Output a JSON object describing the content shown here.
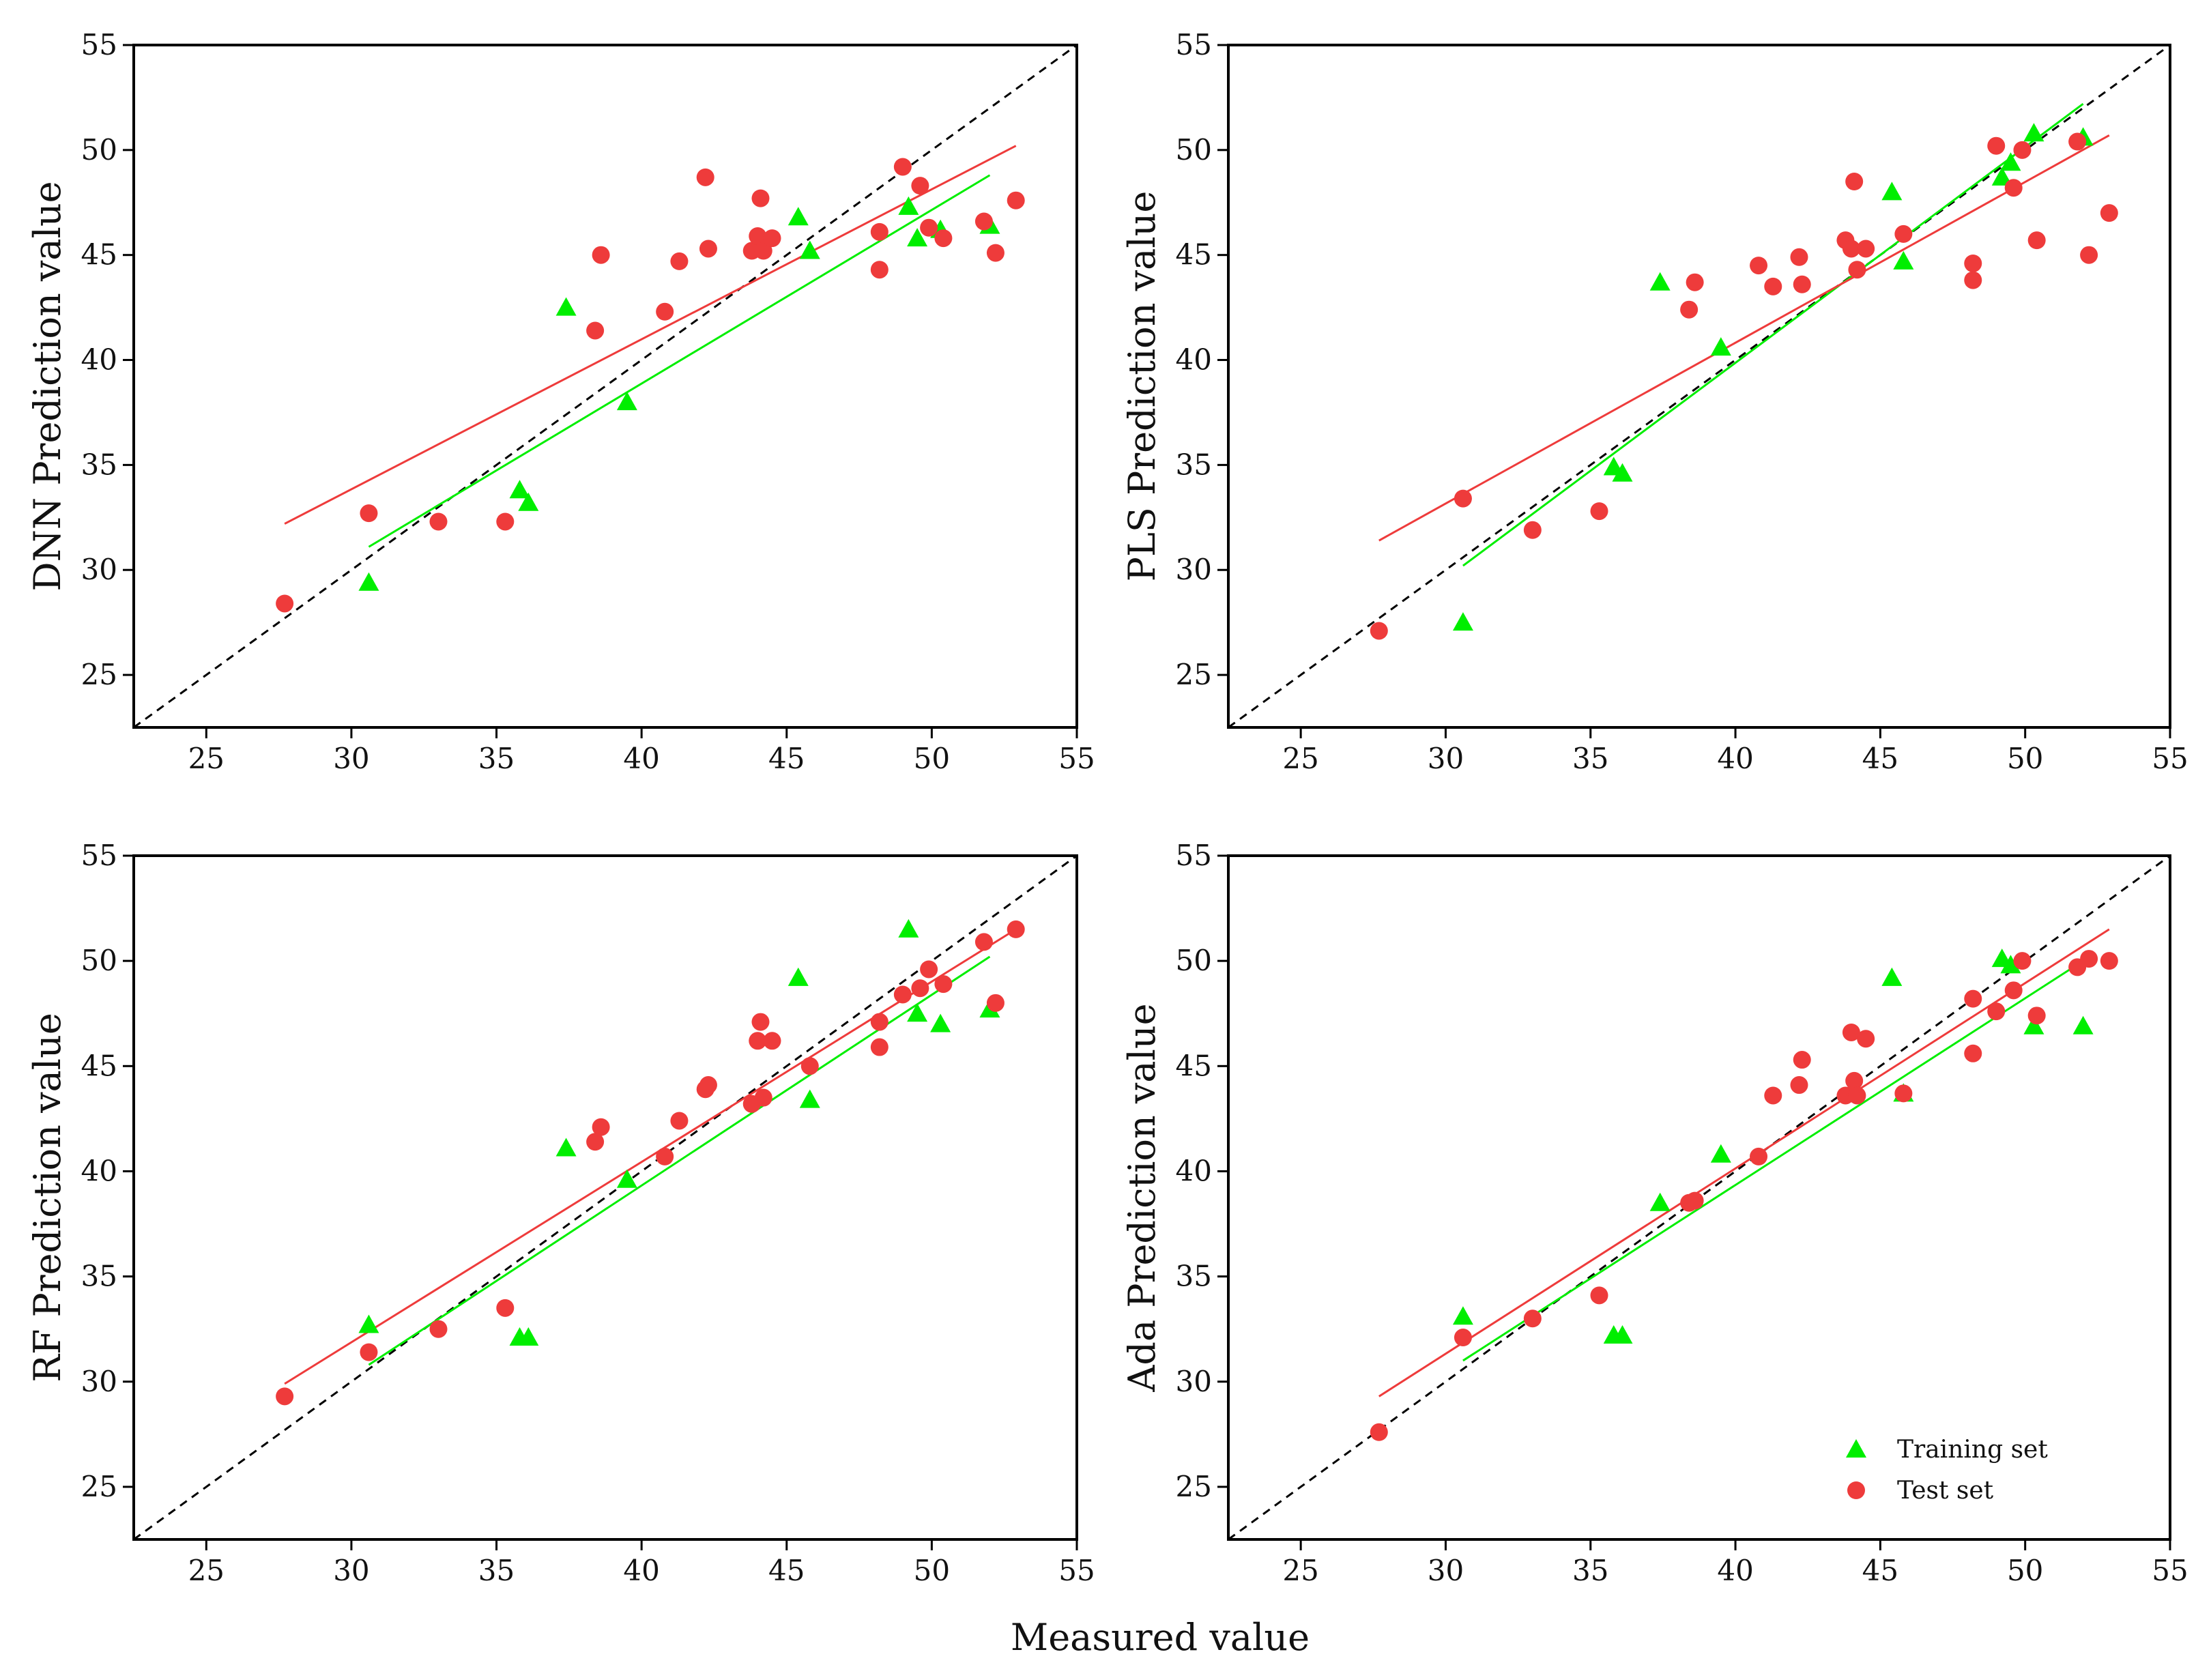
{
  "figure": {
    "shared_xlabel": "Measured value",
    "colors": {
      "train": "#00ee00",
      "test": "#ee3b3b",
      "diagonal": "#000000",
      "axis": "#000000"
    },
    "legend": {
      "train_label": "Training set",
      "test_label": "Test set",
      "panel": 3,
      "placement": "bottom-right"
    }
  },
  "chart_data": [
    {
      "type": "scatter",
      "title": "",
      "xlabel": "",
      "ylabel": "DNN Prediction value",
      "xlim": [
        22.5,
        55
      ],
      "ylim": [
        22.5,
        55
      ],
      "xticks": [
        25,
        30,
        35,
        40,
        45,
        50,
        55
      ],
      "yticks": [
        25,
        30,
        35,
        40,
        45,
        50,
        55
      ],
      "series": [
        {
          "name": "Training set",
          "marker": "triangle",
          "points": [
            [
              30.6,
              29.4
            ],
            [
              35.8,
              33.8
            ],
            [
              36.1,
              33.2
            ],
            [
              37.4,
              42.5
            ],
            [
              39.5,
              38.0
            ],
            [
              45.4,
              46.8
            ],
            [
              45.8,
              45.2
            ],
            [
              49.2,
              47.3
            ],
            [
              49.5,
              45.8
            ],
            [
              50.3,
              46.2
            ],
            [
              52.0,
              46.4
            ]
          ]
        },
        {
          "name": "Test set",
          "marker": "circle",
          "points": [
            [
              27.7,
              28.4
            ],
            [
              30.6,
              32.7
            ],
            [
              33.0,
              32.3
            ],
            [
              35.3,
              32.3
            ],
            [
              38.4,
              41.4
            ],
            [
              38.6,
              45.0
            ],
            [
              40.8,
              42.3
            ],
            [
              41.3,
              44.7
            ],
            [
              42.2,
              48.7
            ],
            [
              42.3,
              45.3
            ],
            [
              43.8,
              45.2
            ],
            [
              44.0,
              45.9
            ],
            [
              44.1,
              47.7
            ],
            [
              44.2,
              45.2
            ],
            [
              44.5,
              45.8
            ],
            [
              48.2,
              44.3
            ],
            [
              48.2,
              46.1
            ],
            [
              49.0,
              49.2
            ],
            [
              49.6,
              48.3
            ],
            [
              49.9,
              46.3
            ],
            [
              50.4,
              45.8
            ],
            [
              51.8,
              46.6
            ],
            [
              52.2,
              45.1
            ],
            [
              52.9,
              47.6
            ]
          ]
        }
      ],
      "fits": {
        "train": [
          [
            30.6,
            31.1
          ],
          [
            52.0,
            48.8
          ]
        ],
        "test": [
          [
            27.7,
            32.2
          ],
          [
            52.9,
            50.2
          ]
        ]
      },
      "diagonal": [
        [
          22.5,
          22.5
        ],
        [
          55,
          55
        ]
      ]
    },
    {
      "type": "scatter",
      "title": "",
      "xlabel": "",
      "ylabel": "PLS Prediction value",
      "xlim": [
        22.5,
        55
      ],
      "ylim": [
        22.5,
        55
      ],
      "xticks": [
        25,
        30,
        35,
        40,
        45,
        50,
        55
      ],
      "yticks": [
        25,
        30,
        35,
        40,
        45,
        50,
        55
      ],
      "series": [
        {
          "name": "Training set",
          "marker": "triangle",
          "points": [
            [
              30.6,
              27.5
            ],
            [
              35.8,
              34.9
            ],
            [
              36.1,
              34.6
            ],
            [
              37.4,
              43.7
            ],
            [
              39.5,
              40.6
            ],
            [
              45.4,
              48.0
            ],
            [
              45.8,
              44.7
            ],
            [
              49.2,
              48.7
            ],
            [
              49.5,
              49.4
            ],
            [
              50.3,
              50.8
            ],
            [
              52.0,
              50.6
            ]
          ]
        },
        {
          "name": "Test set",
          "marker": "circle",
          "points": [
            [
              27.7,
              27.1
            ],
            [
              30.6,
              33.4
            ],
            [
              33.0,
              31.9
            ],
            [
              35.3,
              32.8
            ],
            [
              38.4,
              42.4
            ],
            [
              38.6,
              43.7
            ],
            [
              40.8,
              44.5
            ],
            [
              41.3,
              43.5
            ],
            [
              42.2,
              44.9
            ],
            [
              42.3,
              43.6
            ],
            [
              43.8,
              45.7
            ],
            [
              44.0,
              45.3
            ],
            [
              44.1,
              48.5
            ],
            [
              44.2,
              44.3
            ],
            [
              44.5,
              45.3
            ],
            [
              45.8,
              46.0
            ],
            [
              48.2,
              44.6
            ],
            [
              48.2,
              43.8
            ],
            [
              49.0,
              50.2
            ],
            [
              49.6,
              48.2
            ],
            [
              49.9,
              50.0
            ],
            [
              50.4,
              45.7
            ],
            [
              51.8,
              50.4
            ],
            [
              52.2,
              45.0
            ],
            [
              52.9,
              47.0
            ]
          ]
        }
      ],
      "fits": {
        "train": [
          [
            30.6,
            30.2
          ],
          [
            52.0,
            52.2
          ]
        ],
        "test": [
          [
            27.7,
            31.4
          ],
          [
            52.9,
            50.7
          ]
        ]
      },
      "diagonal": [
        [
          22.5,
          22.5
        ],
        [
          55,
          55
        ]
      ]
    },
    {
      "type": "scatter",
      "title": "",
      "xlabel": "",
      "ylabel": "RF Prediction value",
      "xlim": [
        22.5,
        55
      ],
      "ylim": [
        22.5,
        55
      ],
      "xticks": [
        25,
        30,
        35,
        40,
        45,
        50,
        55
      ],
      "yticks": [
        25,
        30,
        35,
        40,
        45,
        50,
        55
      ],
      "series": [
        {
          "name": "Training set",
          "marker": "triangle",
          "points": [
            [
              30.6,
              32.7
            ],
            [
              35.8,
              32.1
            ],
            [
              36.1,
              32.1
            ],
            [
              37.4,
              41.1
            ],
            [
              39.5,
              39.6
            ],
            [
              45.4,
              49.2
            ],
            [
              45.8,
              43.4
            ],
            [
              49.2,
              51.5
            ],
            [
              49.5,
              47.5
            ],
            [
              50.3,
              47.0
            ],
            [
              52.0,
              47.7
            ]
          ]
        },
        {
          "name": "Test set",
          "marker": "circle",
          "points": [
            [
              27.7,
              29.3
            ],
            [
              30.6,
              31.4
            ],
            [
              33.0,
              32.5
            ],
            [
              35.3,
              33.5
            ],
            [
              38.4,
              41.4
            ],
            [
              38.6,
              42.1
            ],
            [
              40.8,
              40.7
            ],
            [
              41.3,
              42.4
            ],
            [
              42.2,
              43.9
            ],
            [
              42.3,
              44.1
            ],
            [
              43.8,
              43.2
            ],
            [
              44.0,
              46.2
            ],
            [
              44.1,
              47.1
            ],
            [
              44.2,
              43.5
            ],
            [
              44.5,
              46.2
            ],
            [
              45.8,
              45.0
            ],
            [
              48.2,
              45.9
            ],
            [
              48.2,
              47.1
            ],
            [
              49.0,
              48.4
            ],
            [
              49.6,
              48.7
            ],
            [
              49.9,
              49.6
            ],
            [
              50.4,
              48.9
            ],
            [
              51.8,
              50.9
            ],
            [
              52.2,
              48.0
            ],
            [
              52.9,
              51.5
            ]
          ]
        }
      ],
      "fits": {
        "train": [
          [
            30.6,
            30.8
          ],
          [
            52.0,
            50.2
          ]
        ],
        "test": [
          [
            27.7,
            29.9
          ],
          [
            52.9,
            51.5
          ]
        ]
      },
      "diagonal": [
        [
          22.5,
          22.5
        ],
        [
          55,
          55
        ]
      ]
    },
    {
      "type": "scatter",
      "title": "",
      "xlabel": "",
      "ylabel": "Ada Prediction value",
      "xlim": [
        22.5,
        55
      ],
      "ylim": [
        22.5,
        55
      ],
      "xticks": [
        25,
        30,
        35,
        40,
        45,
        50,
        55
      ],
      "yticks": [
        25,
        30,
        35,
        40,
        45,
        50,
        55
      ],
      "series": [
        {
          "name": "Training set",
          "marker": "triangle",
          "points": [
            [
              30.6,
              33.1
            ],
            [
              35.8,
              32.2
            ],
            [
              36.1,
              32.2
            ],
            [
              37.4,
              38.5
            ],
            [
              39.5,
              40.8
            ],
            [
              45.4,
              49.2
            ],
            [
              45.8,
              43.7
            ],
            [
              49.2,
              50.1
            ],
            [
              49.5,
              49.8
            ],
            [
              50.3,
              46.9
            ],
            [
              52.0,
              46.9
            ]
          ]
        },
        {
          "name": "Test set",
          "marker": "circle",
          "points": [
            [
              27.7,
              27.6
            ],
            [
              30.6,
              32.1
            ],
            [
              33.0,
              33.0
            ],
            [
              35.3,
              34.1
            ],
            [
              38.4,
              38.5
            ],
            [
              38.6,
              38.6
            ],
            [
              40.8,
              40.7
            ],
            [
              41.3,
              43.6
            ],
            [
              42.2,
              44.1
            ],
            [
              42.3,
              45.3
            ],
            [
              43.8,
              43.6
            ],
            [
              44.0,
              46.6
            ],
            [
              44.1,
              44.3
            ],
            [
              44.2,
              43.6
            ],
            [
              44.5,
              46.3
            ],
            [
              45.8,
              43.7
            ],
            [
              48.2,
              45.6
            ],
            [
              48.2,
              48.2
            ],
            [
              49.0,
              47.6
            ],
            [
              49.6,
              48.6
            ],
            [
              49.9,
              50.0
            ],
            [
              50.4,
              47.4
            ],
            [
              51.8,
              49.7
            ],
            [
              52.2,
              50.1
            ],
            [
              52.9,
              50.0
            ]
          ]
        }
      ],
      "fits": {
        "train": [
          [
            30.6,
            31.0
          ],
          [
            52.0,
            50.0
          ]
        ],
        "test": [
          [
            27.7,
            29.3
          ],
          [
            52.9,
            51.5
          ]
        ]
      },
      "diagonal": [
        [
          22.5,
          22.5
        ],
        [
          55,
          55
        ]
      ]
    }
  ]
}
